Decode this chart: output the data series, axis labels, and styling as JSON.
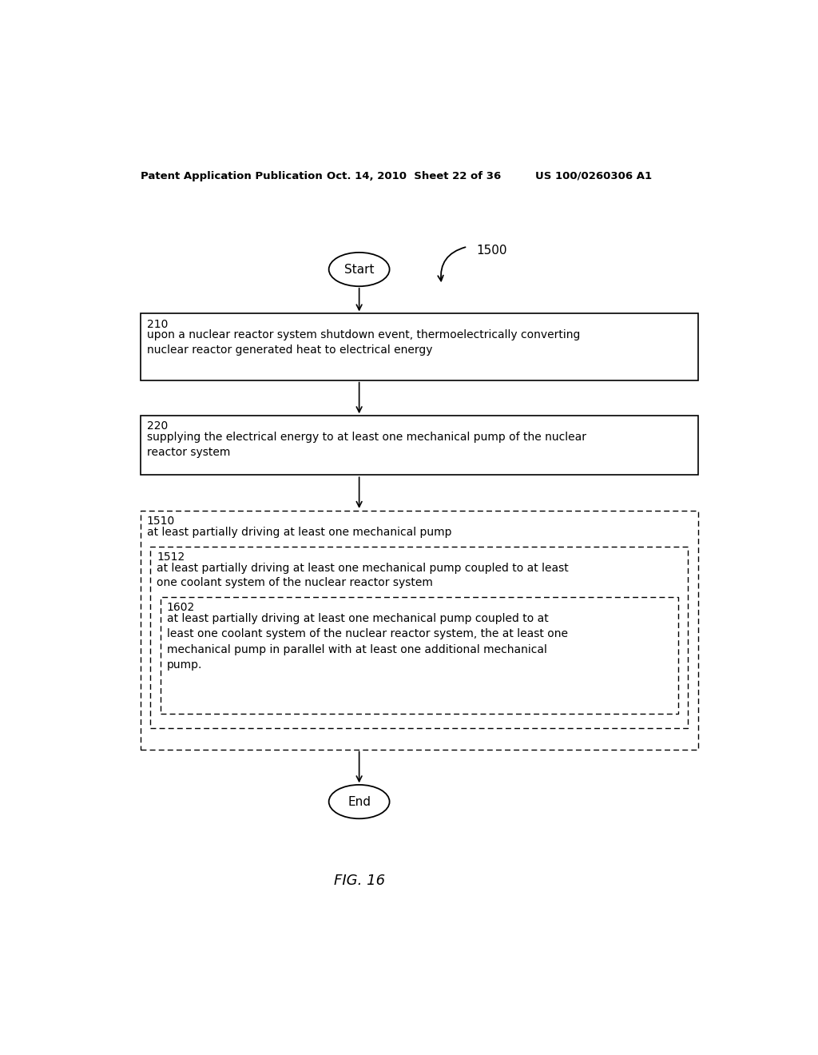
{
  "bg_color": "#ffffff",
  "header_left": "Patent Application Publication",
  "header_mid": "Oct. 14, 2010  Sheet 22 of 36",
  "header_right": "US 100/0260306 A1",
  "figure_label": "FIG. 16",
  "start_label": "Start",
  "end_label": "End",
  "label_1500": "1500",
  "box210_id": "210",
  "box210_text": "upon a nuclear reactor system shutdown event, thermoelectrically converting\nnuclear reactor generated heat to electrical energy",
  "box220_id": "220",
  "box220_text": "supplying the electrical energy to at least one mechanical pump of the nuclear\nreactor system",
  "box1510_id": "1510",
  "box1510_text": "at least partially driving at least one mechanical pump",
  "box1512_id": "1512",
  "box1512_text": "at least partially driving at least one mechanical pump coupled to at least\none coolant system of the nuclear reactor system",
  "box1602_id": "1602",
  "box1602_text": "at least partially driving at least one mechanical pump coupled to at\nleast one coolant system of the nuclear reactor system, the at least one\nmechanical pump in parallel with at least one additional mechanical\npump."
}
